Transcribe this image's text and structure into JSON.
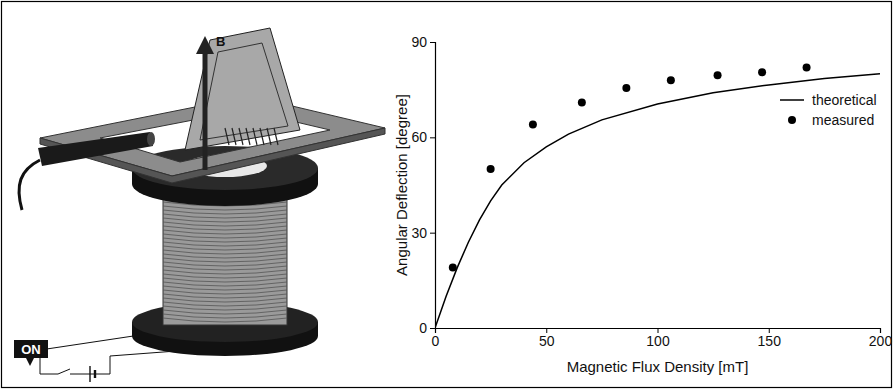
{
  "chart_data": {
    "type": "line",
    "x_label": "Magnetic Flux Density [mT]",
    "y_label": "Angular Deflection [degree]",
    "xlim": [
      0,
      200
    ],
    "xticks": [
      0,
      50,
      100,
      150,
      200
    ],
    "ylim": [
      0,
      90
    ],
    "yticks": [
      0,
      30,
      60,
      90
    ],
    "grid": false,
    "legend": "right",
    "series": [
      {
        "name": "theoretical",
        "type": "line",
        "color": "#000000",
        "line_style": "solid",
        "x": [
          0,
          5,
          10,
          15,
          20,
          25,
          30,
          40,
          50,
          60,
          75,
          100,
          125,
          150,
          175,
          200
        ],
        "values": [
          0,
          10,
          19,
          27,
          34,
          40,
          45,
          52,
          57,
          61,
          65.5,
          70.5,
          74,
          76.5,
          78.5,
          80
        ]
      },
      {
        "name": "measured",
        "type": "scatter",
        "color": "#000000",
        "marker": "circle",
        "x": [
          8,
          25,
          44,
          66,
          86,
          106,
          127,
          147,
          167
        ],
        "values": [
          19,
          50,
          64,
          71,
          75.5,
          78,
          79.5,
          80.5,
          82
        ]
      }
    ]
  },
  "illustration": {
    "field_label": "B",
    "switch_label": "ON"
  }
}
